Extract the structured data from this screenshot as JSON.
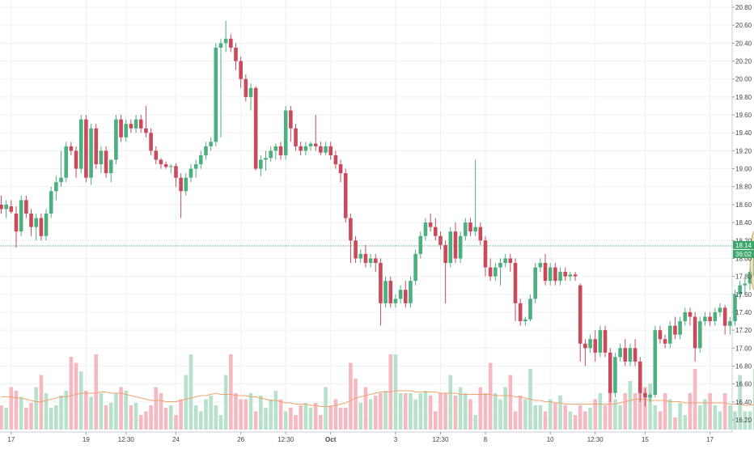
{
  "chart_data": {
    "type": "candlestick",
    "title": "",
    "xlabel": "",
    "ylabel": "",
    "ylim": [
      16.1,
      20.9
    ],
    "y_ticks": [
      "20.80",
      "20.60",
      "20.40",
      "20.20",
      "20.00",
      "19.80",
      "19.60",
      "19.40",
      "19.20",
      "19.00",
      "18.80",
      "18.60",
      "18.40",
      "18.20",
      "18.00",
      "17.80",
      "17.60",
      "17.40",
      "17.20",
      "17.00",
      "16.80",
      "16.60",
      "16.40",
      "16.20"
    ],
    "x_labels": [
      {
        "label": "17",
        "bar": 2
      },
      {
        "label": "19",
        "bar": 17
      },
      {
        "label": "12:30",
        "bar": 25
      },
      {
        "label": "24",
        "bar": 35
      },
      {
        "label": "26",
        "bar": 48
      },
      {
        "label": "12:30",
        "bar": 57
      },
      {
        "label": "Oct",
        "bar": 66
      },
      {
        "label": "3",
        "bar": 79
      },
      {
        "label": "12:30",
        "bar": 88
      },
      {
        "label": "8",
        "bar": 97
      },
      {
        "label": "10",
        "bar": 110
      },
      {
        "label": "12:30",
        "bar": 119
      },
      {
        "label": "15",
        "bar": 129
      },
      {
        "label": "17",
        "bar": 142
      }
    ],
    "current_price": "18.14",
    "countdown": "36:02",
    "current_price_value": 18.14,
    "colors": {
      "up": "#4caf7f",
      "down": "#c94a5a",
      "up_volume": "#b7e1cb",
      "down_volume": "#f6b9c2",
      "ma": "#f1a36f",
      "price_line": "#3aa66b",
      "highlight": "#d9c48a"
    },
    "candles": [
      [
        18.6,
        18.7,
        18.5,
        18.55
      ],
      [
        18.55,
        18.65,
        18.45,
        18.6
      ],
      [
        18.58,
        18.65,
        18.5,
        18.52
      ],
      [
        18.5,
        18.58,
        18.12,
        18.3
      ],
      [
        18.3,
        18.7,
        18.25,
        18.65
      ],
      [
        18.65,
        18.7,
        18.45,
        18.5
      ],
      [
        18.5,
        18.55,
        18.25,
        18.35
      ],
      [
        18.35,
        18.5,
        18.2,
        18.45
      ],
      [
        18.45,
        18.5,
        18.2,
        18.25
      ],
      [
        18.25,
        18.55,
        18.2,
        18.5
      ],
      [
        18.5,
        18.8,
        18.45,
        18.75
      ],
      [
        18.75,
        18.92,
        18.65,
        18.85
      ],
      [
        18.85,
        19.2,
        18.8,
        18.9
      ],
      [
        18.9,
        19.3,
        18.85,
        19.25
      ],
      [
        19.25,
        19.3,
        19.15,
        19.2
      ],
      [
        19.2,
        19.25,
        18.9,
        19.0
      ],
      [
        19.0,
        19.6,
        18.95,
        19.55
      ],
      [
        19.55,
        19.6,
        18.85,
        18.9
      ],
      [
        18.9,
        19.5,
        18.82,
        19.45
      ],
      [
        19.45,
        19.5,
        19.0,
        19.05
      ],
      [
        19.05,
        19.25,
        18.95,
        19.2
      ],
      [
        19.2,
        19.25,
        18.9,
        18.95
      ],
      [
        18.95,
        19.1,
        18.85,
        19.1
      ],
      [
        19.1,
        19.6,
        19.05,
        19.55
      ],
      [
        19.55,
        19.6,
        19.3,
        19.35
      ],
      [
        19.35,
        19.55,
        19.3,
        19.5
      ],
      [
        19.5,
        19.55,
        19.4,
        19.45
      ],
      [
        19.45,
        19.6,
        19.4,
        19.55
      ],
      [
        19.55,
        19.6,
        19.4,
        19.45
      ],
      [
        19.45,
        19.7,
        19.35,
        19.4
      ],
      [
        19.4,
        19.45,
        19.15,
        19.2
      ],
      [
        19.2,
        19.25,
        19.05,
        19.1
      ],
      [
        19.1,
        19.12,
        19.0,
        19.05
      ],
      [
        19.05,
        19.08,
        19.0,
        19.02
      ],
      [
        19.02,
        19.05,
        18.95,
        19.03
      ],
      [
        19.03,
        19.06,
        18.8,
        18.9
      ],
      [
        18.9,
        18.95,
        18.45,
        18.75
      ],
      [
        18.75,
        18.95,
        18.7,
        18.9
      ],
      [
        18.9,
        19.05,
        18.85,
        19.0
      ],
      [
        19.0,
        19.1,
        18.9,
        19.05
      ],
      [
        19.05,
        19.2,
        19.0,
        19.15
      ],
      [
        19.15,
        19.3,
        19.1,
        19.25
      ],
      [
        19.25,
        19.35,
        19.2,
        19.3
      ],
      [
        19.3,
        20.4,
        19.25,
        20.35
      ],
      [
        20.35,
        20.45,
        19.35,
        20.4
      ],
      [
        20.4,
        20.65,
        20.3,
        20.45
      ],
      [
        20.45,
        20.5,
        20.3,
        20.35
      ],
      [
        20.35,
        20.4,
        20.1,
        20.2
      ],
      [
        20.2,
        20.25,
        19.9,
        20.0
      ],
      [
        20.0,
        20.05,
        19.75,
        19.8
      ],
      [
        19.8,
        19.95,
        19.65,
        19.9
      ],
      [
        19.9,
        19.92,
        18.98,
        19.0
      ],
      [
        19.0,
        19.15,
        18.92,
        19.1
      ],
      [
        19.1,
        19.2,
        18.98,
        19.12
      ],
      [
        19.12,
        19.25,
        19.08,
        19.2
      ],
      [
        19.2,
        19.28,
        19.1,
        19.25
      ],
      [
        19.25,
        19.3,
        19.1,
        19.15
      ],
      [
        19.15,
        19.7,
        19.1,
        19.65
      ],
      [
        19.65,
        19.7,
        19.3,
        19.45
      ],
      [
        19.45,
        19.5,
        19.2,
        19.25
      ],
      [
        19.25,
        19.3,
        19.15,
        19.2
      ],
      [
        19.2,
        19.3,
        19.15,
        19.25
      ],
      [
        19.25,
        19.3,
        19.2,
        19.28
      ],
      [
        19.28,
        19.6,
        19.2,
        19.25
      ],
      [
        19.25,
        19.3,
        19.15,
        19.18
      ],
      [
        19.18,
        19.3,
        19.15,
        19.25
      ],
      [
        19.25,
        19.3,
        19.1,
        19.15
      ],
      [
        19.15,
        19.2,
        19.0,
        19.05
      ],
      [
        19.05,
        19.1,
        18.85,
        18.95
      ],
      [
        18.95,
        19.0,
        18.4,
        18.45
      ],
      [
        18.45,
        18.5,
        17.95,
        18.2
      ],
      [
        18.2,
        18.25,
        17.95,
        18.0
      ],
      [
        18.0,
        18.1,
        17.95,
        18.05
      ],
      [
        18.05,
        18.15,
        17.9,
        17.95
      ],
      [
        17.95,
        18.05,
        17.9,
        18.0
      ],
      [
        18.0,
        18.05,
        17.85,
        17.95
      ],
      [
        17.95,
        18.0,
        17.25,
        17.5
      ],
      [
        17.5,
        17.8,
        17.45,
        17.75
      ],
      [
        17.75,
        17.8,
        17.45,
        17.5
      ],
      [
        17.5,
        17.6,
        17.45,
        17.55
      ],
      [
        17.55,
        17.7,
        17.5,
        17.65
      ],
      [
        17.65,
        17.75,
        17.45,
        17.5
      ],
      [
        17.5,
        17.8,
        17.45,
        17.75
      ],
      [
        17.75,
        18.1,
        17.7,
        18.05
      ],
      [
        18.05,
        18.3,
        18.0,
        18.25
      ],
      [
        18.25,
        18.45,
        18.2,
        18.4
      ],
      [
        18.4,
        18.5,
        18.3,
        18.35
      ],
      [
        18.35,
        18.45,
        18.2,
        18.25
      ],
      [
        18.25,
        18.3,
        18.1,
        18.15
      ],
      [
        18.15,
        18.2,
        17.5,
        17.95
      ],
      [
        17.95,
        18.35,
        17.9,
        18.3
      ],
      [
        18.3,
        18.4,
        17.95,
        18.0
      ],
      [
        18.0,
        18.3,
        17.95,
        18.25
      ],
      [
        18.25,
        18.45,
        18.2,
        18.4
      ],
      [
        18.4,
        18.45,
        18.25,
        18.3
      ],
      [
        18.3,
        19.1,
        18.25,
        18.35
      ],
      [
        18.35,
        18.4,
        18.15,
        18.2
      ],
      [
        18.2,
        18.25,
        17.8,
        17.9
      ],
      [
        17.9,
        18.0,
        17.75,
        17.8
      ],
      [
        17.8,
        17.95,
        17.75,
        17.9
      ],
      [
        17.9,
        18.0,
        17.7,
        17.95
      ],
      [
        17.95,
        18.05,
        17.9,
        18.0
      ],
      [
        18.0,
        18.05,
        17.85,
        17.95
      ],
      [
        17.95,
        18.0,
        17.3,
        17.5
      ],
      [
        17.5,
        17.55,
        17.25,
        17.3
      ],
      [
        17.3,
        17.35,
        17.25,
        17.32
      ],
      [
        17.32,
        17.6,
        17.3,
        17.55
      ],
      [
        17.55,
        17.95,
        17.5,
        17.9
      ],
      [
        17.9,
        18.0,
        17.85,
        17.95
      ],
      [
        17.95,
        18.05,
        17.7,
        17.75
      ],
      [
        17.75,
        17.95,
        17.7,
        17.9
      ],
      [
        17.9,
        17.95,
        17.7,
        17.75
      ],
      [
        17.75,
        17.9,
        17.7,
        17.85
      ],
      [
        17.85,
        17.9,
        17.75,
        17.8
      ],
      [
        17.8,
        17.85,
        17.75,
        17.82
      ],
      [
        17.82,
        17.85,
        17.75,
        17.8
      ],
      [
        17.7,
        17.72,
        16.85,
        17.05
      ],
      [
        17.05,
        17.1,
        16.8,
        17.0
      ],
      [
        17.0,
        17.15,
        16.95,
        17.1
      ],
      [
        17.1,
        17.2,
        16.85,
        16.95
      ],
      [
        16.95,
        17.25,
        16.9,
        17.2
      ],
      [
        17.2,
        17.25,
        16.9,
        16.95
      ],
      [
        16.95,
        17.0,
        16.4,
        16.5
      ],
      [
        16.5,
        16.95,
        16.45,
        16.9
      ],
      [
        16.9,
        17.05,
        16.85,
        17.0
      ],
      [
        17.0,
        17.1,
        16.8,
        16.85
      ],
      [
        16.85,
        17.05,
        16.8,
        17.0
      ],
      [
        17.0,
        17.1,
        16.8,
        16.85
      ],
      [
        16.85,
        16.9,
        16.4,
        16.5
      ],
      [
        16.5,
        16.55,
        16.35,
        16.45
      ],
      [
        16.45,
        16.5,
        16.4,
        16.48
      ],
      [
        16.48,
        17.25,
        16.45,
        17.2
      ],
      [
        17.2,
        17.25,
        17.05,
        17.1
      ],
      [
        17.1,
        17.15,
        17.0,
        17.05
      ],
      [
        17.05,
        17.3,
        17.0,
        17.25
      ],
      [
        17.25,
        17.35,
        17.1,
        17.15
      ],
      [
        17.15,
        17.35,
        17.1,
        17.3
      ],
      [
        17.3,
        17.45,
        17.25,
        17.4
      ],
      [
        17.4,
        17.45,
        17.25,
        17.35
      ],
      [
        17.35,
        17.4,
        16.85,
        17.0
      ],
      [
        17.0,
        17.35,
        16.95,
        17.3
      ],
      [
        17.3,
        17.4,
        17.25,
        17.35
      ],
      [
        17.35,
        17.4,
        17.25,
        17.3
      ],
      [
        17.3,
        17.45,
        17.25,
        17.4
      ],
      [
        17.4,
        17.5,
        17.35,
        17.45
      ],
      [
        17.45,
        17.48,
        17.15,
        17.25
      ],
      [
        17.25,
        17.35,
        17.15,
        17.3
      ],
      [
        17.3,
        17.65,
        17.25,
        17.6
      ],
      [
        17.6,
        17.75,
        17.55,
        17.7
      ],
      [
        17.7,
        17.78,
        17.6,
        17.72
      ],
      [
        17.72,
        17.9,
        17.65,
        17.85
      ],
      [
        17.8,
        18.2,
        17.75,
        18.14
      ]
    ],
    "volume": [
      0.2,
      0.18,
      0.35,
      0.32,
      0.27,
      0.18,
      0.22,
      0.35,
      0.45,
      0.3,
      0.18,
      0.2,
      0.28,
      0.32,
      0.6,
      0.55,
      0.48,
      0.32,
      0.27,
      0.62,
      0.3,
      0.2,
      0.22,
      0.3,
      0.35,
      0.32,
      0.2,
      0.22,
      0.12,
      0.15,
      0.2,
      0.35,
      0.3,
      0.18,
      0.2,
      0.12,
      0.25,
      0.45,
      0.62,
      0.2,
      0.15,
      0.25,
      0.28,
      0.2,
      0.12,
      0.45,
      0.62,
      0.3,
      0.25,
      0.25,
      0.3,
      0.15,
      0.28,
      0.18,
      0.25,
      0.32,
      0.25,
      0.15,
      0.18,
      0.12,
      0.2,
      0.22,
      0.18,
      0.22,
      0.12,
      0.35,
      0.2,
      0.25,
      0.18,
      0.18,
      0.55,
      0.42,
      0.22,
      0.35,
      0.25,
      0.28,
      0.3,
      0.32,
      0.62,
      0.62,
      0.3,
      0.3,
      0.3,
      0.25,
      0.3,
      0.32,
      0.28,
      0.15,
      0.3,
      0.3,
      0.45,
      0.28,
      0.35,
      0.3,
      0.25,
      0.12,
      0.35,
      0.3,
      0.55,
      0.3,
      0.25,
      0.35,
      0.45,
      0.15,
      0.28,
      0.25,
      0.5,
      0.2,
      0.2,
      0.15,
      0.25,
      0.22,
      0.28,
      0.2,
      0.15,
      0.12,
      0.2,
      0.15,
      0.18,
      0.25,
      0.3,
      0.2,
      0.35,
      0.25,
      0.2,
      0.3,
      0.4,
      0.3,
      0.4,
      0.35,
      0.38,
      0.2,
      0.15,
      0.3,
      0.25,
      0.1,
      0.22,
      0.12,
      0.3,
      0.5,
      0.2,
      0.25,
      0.3,
      0.2,
      0.15,
      0.3,
      0.2,
      0.15,
      0.45,
      0.15,
      0.15,
      0.5,
      0.45
    ],
    "volume_ma": [
      0.27,
      0.27,
      0.27,
      0.26,
      0.26,
      0.25,
      0.24,
      0.23,
      0.23,
      0.24,
      0.25,
      0.26,
      0.27,
      0.27,
      0.28,
      0.29,
      0.3,
      0.3,
      0.3,
      0.3,
      0.31,
      0.31,
      0.3,
      0.3,
      0.3,
      0.29,
      0.28,
      0.27,
      0.26,
      0.25,
      0.24,
      0.24,
      0.24,
      0.23,
      0.23,
      0.23,
      0.24,
      0.25,
      0.26,
      0.27,
      0.28,
      0.28,
      0.29,
      0.3,
      0.29,
      0.29,
      0.29,
      0.28,
      0.28,
      0.28,
      0.27,
      0.27,
      0.26,
      0.25,
      0.24,
      0.24,
      0.23,
      0.22,
      0.22,
      0.21,
      0.21,
      0.21,
      0.2,
      0.2,
      0.19,
      0.19,
      0.19,
      0.2,
      0.21,
      0.22,
      0.24,
      0.26,
      0.27,
      0.28,
      0.29,
      0.3,
      0.31,
      0.31,
      0.31,
      0.32,
      0.32,
      0.32,
      0.32,
      0.31,
      0.31,
      0.31,
      0.31,
      0.31,
      0.3,
      0.3,
      0.3,
      0.3,
      0.29,
      0.29,
      0.29,
      0.29,
      0.29,
      0.29,
      0.29,
      0.28,
      0.28,
      0.28,
      0.28,
      0.27,
      0.27,
      0.26,
      0.25,
      0.24,
      0.24,
      0.23,
      0.23,
      0.22,
      0.22,
      0.21,
      0.21,
      0.21,
      0.21,
      0.21,
      0.21,
      0.21,
      0.21,
      0.21,
      0.21,
      0.21,
      0.22,
      0.23,
      0.24,
      0.25,
      0.25,
      0.25,
      0.24,
      0.24,
      0.24,
      0.24,
      0.23,
      0.23,
      0.23,
      0.22,
      0.22,
      0.22,
      0.22,
      0.22,
      0.22,
      0.22,
      0.22,
      0.22,
      0.21,
      0.21,
      0.21,
      0.2,
      0.2,
      0.21,
      0.22
    ]
  }
}
